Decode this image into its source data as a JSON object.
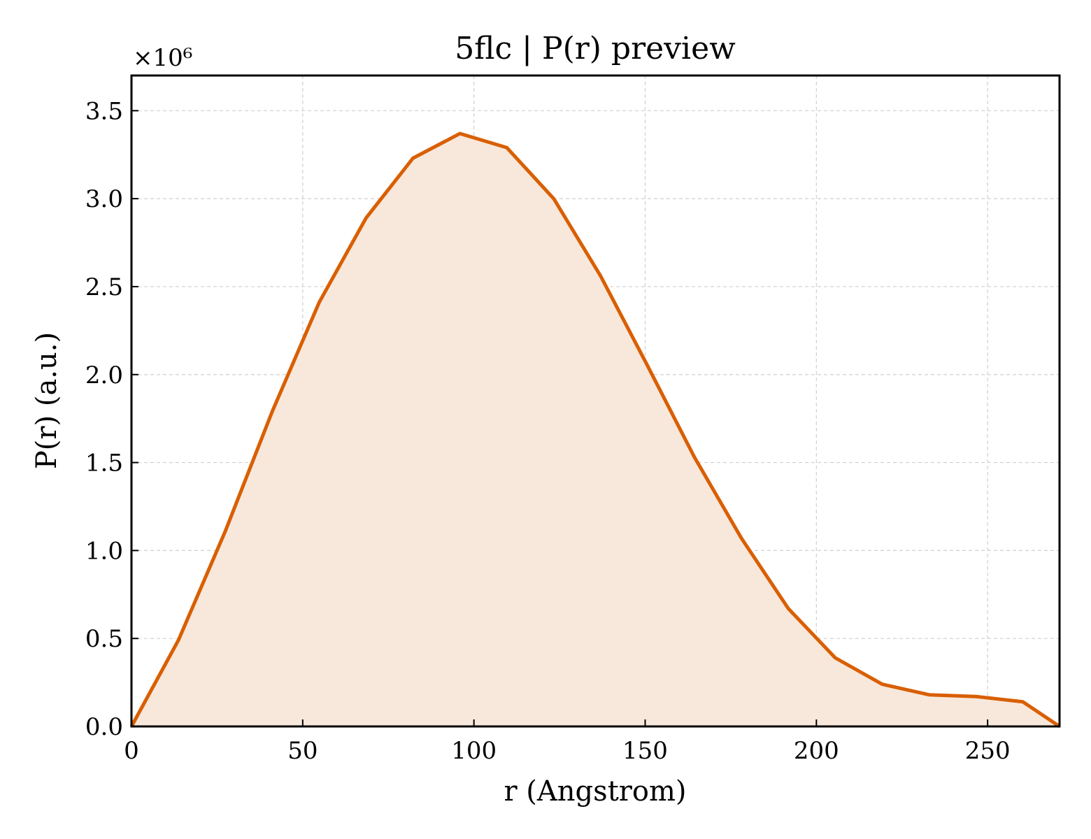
{
  "chart_data": {
    "type": "area",
    "title": "5flc | P(r) preview",
    "xlabel": "r (Angstrom)",
    "ylabel": "P(r) (a.u.)",
    "y_offset_label": "×10⁶",
    "y_scale_factor": 1000000,
    "xlim": [
      0,
      271
    ],
    "ylim": [
      0,
      3.7
    ],
    "x_ticks": [
      0,
      50,
      100,
      150,
      200,
      250
    ],
    "x_tick_labels": [
      "0",
      "50",
      "100",
      "150",
      "200",
      "250"
    ],
    "y_ticks": [
      0,
      0.5,
      1.0,
      1.5,
      2.0,
      2.5,
      3.0,
      3.5
    ],
    "y_tick_labels": [
      "0.0",
      "0.5",
      "1.0",
      "1.5",
      "2.0",
      "2.5",
      "3.0",
      "3.5"
    ],
    "grid": true,
    "line_color": "#d95f02",
    "fill_color": "#f8e8dc",
    "series": [
      {
        "x": [
          0,
          13.7,
          27.4,
          41.1,
          54.8,
          68.5,
          82.2,
          95.9,
          109.6,
          123.3,
          137.0,
          150.7,
          164.4,
          178.1,
          191.8,
          205.5,
          219.2,
          232.9,
          246.6,
          260.3,
          271
        ],
        "values": [
          0.0,
          0.49,
          1.11,
          1.79,
          2.41,
          2.89,
          3.23,
          3.37,
          3.29,
          3.0,
          2.56,
          2.05,
          1.53,
          1.07,
          0.67,
          0.39,
          0.24,
          0.18,
          0.17,
          0.14,
          0.0
        ]
      }
    ]
  }
}
